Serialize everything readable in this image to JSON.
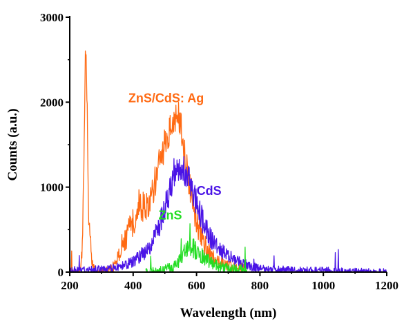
{
  "chart_data": {
    "type": "line",
    "title": "",
    "xlabel": "Wavelength (nm)",
    "ylabel": "Counts (a.u.)",
    "xlim": [
      200,
      1200
    ],
    "ylim": [
      0,
      3000
    ],
    "xticks": [
      200,
      400,
      600,
      800,
      1000,
      1200
    ],
    "yticks": [
      0,
      1000,
      2000,
      3000
    ],
    "grid": false,
    "legend": "none",
    "series": [
      {
        "name": "ZnS/CdS: Ag",
        "color": "#ff6a13",
        "x": [
          200,
          230,
          240,
          245,
          250,
          255,
          260,
          270,
          280,
          300,
          320,
          340,
          360,
          380,
          400,
          420,
          440,
          460,
          480,
          500,
          520,
          540,
          550,
          560,
          580,
          600,
          620,
          640,
          660,
          680,
          700,
          720,
          740,
          760
        ],
        "y": [
          0,
          0,
          300,
          1400,
          2620,
          1900,
          700,
          100,
          0,
          0,
          20,
          80,
          230,
          420,
          600,
          820,
          740,
          900,
          1250,
          1500,
          1700,
          1850,
          1750,
          1450,
          1000,
          580,
          370,
          230,
          150,
          100,
          80,
          60,
          50,
          20
        ],
        "noise": 140
      },
      {
        "name": "CdS",
        "color": "#4a14e6",
        "x": [
          200,
          300,
          350,
          400,
          450,
          480,
          500,
          520,
          540,
          560,
          580,
          600,
          620,
          640,
          660,
          680,
          700,
          720,
          760,
          800,
          900,
          1000,
          1100,
          1200
        ],
        "y": [
          20,
          30,
          60,
          120,
          280,
          500,
          750,
          1000,
          1180,
          1200,
          1050,
          800,
          600,
          430,
          330,
          250,
          200,
          150,
          80,
          40,
          20,
          15,
          5,
          0
        ],
        "noise": 120
      },
      {
        "name": "ZnS",
        "color": "#22dd22",
        "x": [
          440,
          480,
          520,
          540,
          560,
          580,
          600,
          620,
          640,
          660,
          680,
          700,
          720,
          740,
          760
        ],
        "y": [
          0,
          10,
          50,
          120,
          220,
          300,
          260,
          180,
          120,
          80,
          60,
          50,
          40,
          30,
          0
        ],
        "noise": 150
      }
    ],
    "annotations": [
      {
        "text": "ZnS/CdS: Ag",
        "color": "#ff6a13",
        "x": 385,
        "y": 2000
      },
      {
        "text": "CdS",
        "color": "#4a14e6",
        "x": 600,
        "y": 910
      },
      {
        "text": "ZnS",
        "color": "#22dd22",
        "x": 480,
        "y": 620
      }
    ]
  }
}
